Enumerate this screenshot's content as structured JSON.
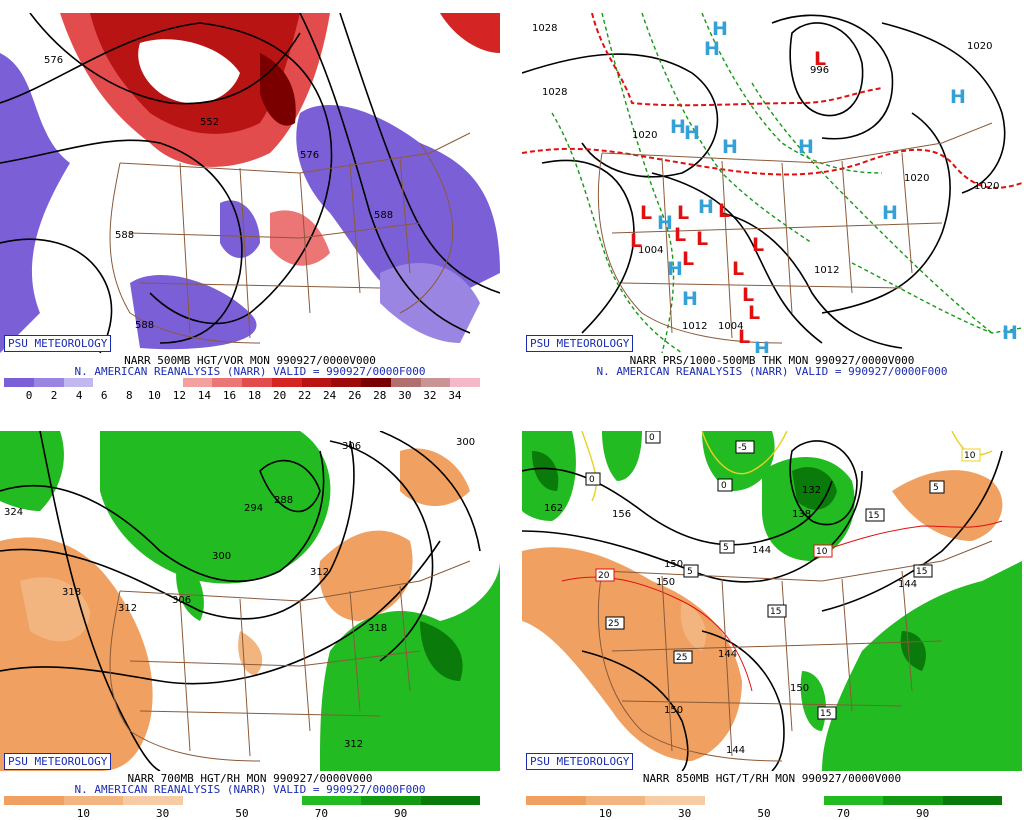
{
  "branding": "PSU METEOROLOGY",
  "colors": {
    "state_lines": "#8a5a3a",
    "h_color": "#33a0d8",
    "l_color": "#e01010",
    "contour": "#000000"
  },
  "panels": [
    {
      "id": "vorticity",
      "title": "NARR 500MB HGT/VOR MON 990927/0000V000",
      "subtitle": "N. AMERICAN REANALYSIS (NARR) VALID = 990927/0000F000",
      "colorbar": {
        "colors": [
          "#7b5fd6",
          "#9a86e2",
          "#c3b7ef",
          "#ffffff",
          "#ffffff",
          "#ffffff",
          "#f2a0a0",
          "#ec7575",
          "#e24c4c",
          "#d42424",
          "#b81414",
          "#9c0a0a",
          "#7a0000",
          "#b07070",
          "#c99494",
          "#f5b8c8"
        ],
        "labels": [
          "0",
          "2",
          "4",
          "6",
          "8",
          "10",
          "12",
          "14",
          "16",
          "18",
          "20",
          "22",
          "24",
          "26",
          "28",
          "30",
          "32",
          "34"
        ]
      },
      "contour_labels": [
        "576",
        "552",
        "588",
        "588",
        "576",
        "588"
      ]
    },
    {
      "id": "pressure",
      "title": "NARR PRS/1000-500MB THK MON 990927/0000V000",
      "subtitle": "N. AMERICAN REANALYSIS (NARR) VALID = 990927/0000F000",
      "contour_labels": [
        "1028",
        "1020",
        "1020",
        "996",
        "1004",
        "1012",
        "1012",
        "1004",
        "1020",
        "1028",
        "1020"
      ]
    },
    {
      "id": "rh700",
      "title": "NARR 700MB HGT/RH MON 990927/0000V000",
      "subtitle": "N. AMERICAN REANALYSIS (NARR) VALID = 990927/0000F000",
      "colorbar": {
        "colors": [
          "#f0a060",
          "#f3b57f",
          "#f7cca4",
          "#ffffff",
          "#ffffff",
          "#22bb22",
          "#139a13",
          "#0a7a0a"
        ],
        "labels": [
          "10",
          "30",
          "50",
          "70",
          "90"
        ]
      },
      "contour_labels": [
        "324",
        "318",
        "312",
        "306",
        "300",
        "294",
        "288",
        "306",
        "300",
        "312",
        "318",
        "312"
      ]
    },
    {
      "id": "temp850",
      "title": "NARR 850MB HGT/T/RH MON 990927/0000V000",
      "subtitle": "",
      "colorbar": {
        "colors": [
          "#f0a060",
          "#f3b57f",
          "#f7cca4",
          "#ffffff",
          "#ffffff",
          "#22bb22",
          "#139a13",
          "#0a7a0a"
        ],
        "labels": [
          "10",
          "30",
          "50",
          "70",
          "90"
        ]
      },
      "contour_labels": [
        "162",
        "156",
        "150",
        "150",
        "144",
        "144",
        "132",
        "138",
        "144",
        "150",
        "150",
        "144"
      ],
      "temp_labels": [
        "0",
        "0",
        "-5",
        "0",
        "5",
        "5",
        "15",
        "10",
        "15",
        "20",
        "25",
        "25",
        "15",
        "15",
        "5",
        "10"
      ]
    }
  ]
}
